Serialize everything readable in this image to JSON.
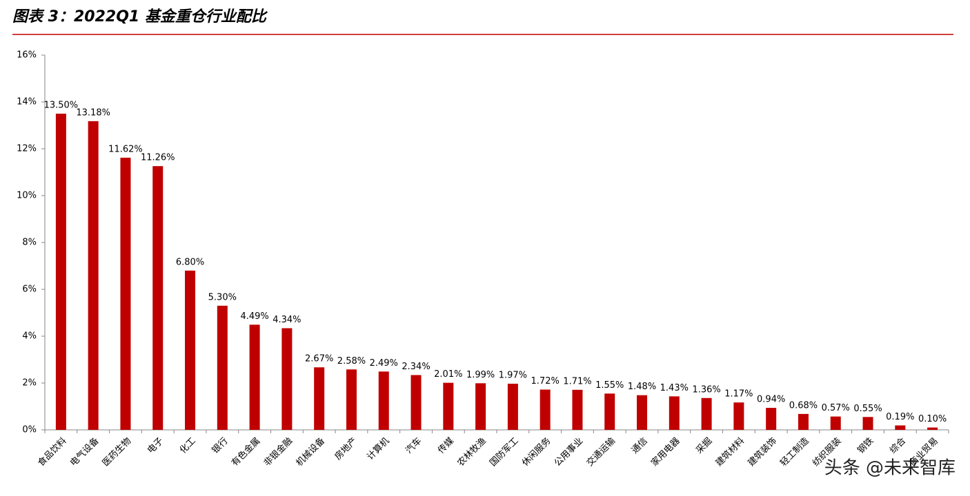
{
  "chart_data": {
    "type": "bar",
    "title": "图表 3：2022Q1 基金重仓行业配比",
    "categories": [
      "食品饮料",
      "电气设备",
      "医药生物",
      "电子",
      "化工",
      "银行",
      "有色金属",
      "非银金融",
      "机械设备",
      "房地产",
      "计算机",
      "汽车",
      "传媒",
      "农林牧渔",
      "国防军工",
      "休闲服务",
      "公用事业",
      "交通运输",
      "通信",
      "家用电器",
      "采掘",
      "建筑材料",
      "建筑装饰",
      "轻工制造",
      "纺织服装",
      "钢铁",
      "综合",
      "商业贸易"
    ],
    "values": [
      13.5,
      13.18,
      11.62,
      11.26,
      6.8,
      5.3,
      4.49,
      4.34,
      2.67,
      2.58,
      2.49,
      2.34,
      2.01,
      1.99,
      1.97,
      1.72,
      1.71,
      1.55,
      1.48,
      1.43,
      1.36,
      1.17,
      0.94,
      0.68,
      0.57,
      0.55,
      0.19,
      0.1
    ],
    "value_labels": [
      "13.50%",
      "13.18%",
      "11.62%",
      "11.26%",
      "6.80%",
      "5.30%",
      "4.49%",
      "4.34%",
      "2.67%",
      "2.58%",
      "2.49%",
      "2.34%",
      "2.01%",
      "1.99%",
      "1.97%",
      "1.72%",
      "1.71%",
      "1.55%",
      "1.48%",
      "1.43%",
      "1.36%",
      "1.17%",
      "0.94%",
      "0.68%",
      "0.57%",
      "0.55%",
      "0.19%",
      "0.10%"
    ],
    "color": "#c00000",
    "ylim": [
      0,
      16
    ],
    "yticks": [
      {
        "value": 0,
        "label": "0%"
      },
      {
        "value": 2,
        "label": "2%"
      },
      {
        "value": 4,
        "label": "4%"
      },
      {
        "value": 6,
        "label": "6%"
      },
      {
        "value": 8,
        "label": "8%"
      },
      {
        "value": 10,
        "label": "10%"
      },
      {
        "value": 12,
        "label": "12%"
      },
      {
        "value": 14,
        "label": "14%"
      },
      {
        "value": 16,
        "label": "16%"
      }
    ],
    "grid": false,
    "watermark": "头条 @未来智库"
  }
}
